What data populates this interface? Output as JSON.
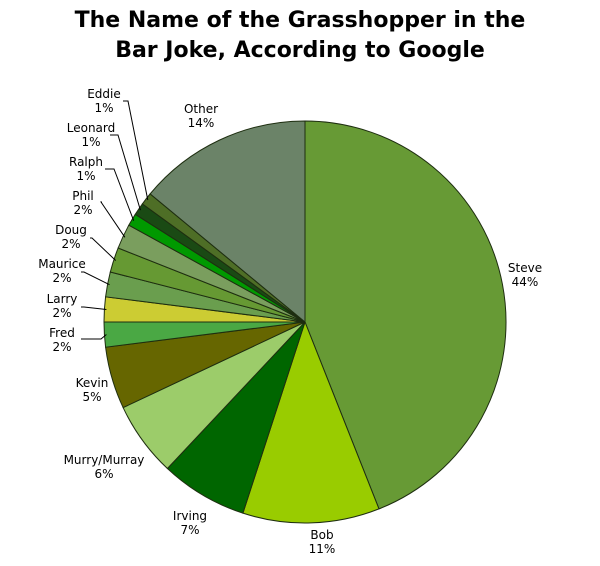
{
  "title_lines": [
    "The Name of the Grasshopper in the",
    "Bar Joke, According to Google"
  ],
  "chart_data": {
    "type": "pie",
    "title": "The Name of the Grasshopper in the Bar Joke, According to Google",
    "unit": "%",
    "direction": "clockwise from top",
    "slices": [
      {
        "label": "Steve",
        "value": 44,
        "display": "44%",
        "color": "#679a35"
      },
      {
        "label": "Bob",
        "value": 11,
        "display": "11%",
        "color": "#99cc00"
      },
      {
        "label": "Irving",
        "value": 7,
        "display": "7%",
        "color": "#006600"
      },
      {
        "label": "Murry/Murray",
        "value": 6,
        "display": "6%",
        "color": "#9ccc6a"
      },
      {
        "label": "Kevin",
        "value": 5,
        "display": "5%",
        "color": "#666600"
      },
      {
        "label": "Fred",
        "value": 2,
        "display": "2%",
        "color": "#4aa844"
      },
      {
        "label": "Larry",
        "value": 2,
        "display": "2%",
        "color": "#cccc33"
      },
      {
        "label": "Maurice",
        "value": 2,
        "display": "2%",
        "color": "#6a9e4e"
      },
      {
        "label": "Doug",
        "value": 2,
        "display": "2%",
        "color": "#669933"
      },
      {
        "label": "Phil",
        "value": 2,
        "display": "2%",
        "color": "#7a9e5e"
      },
      {
        "label": "Ralph",
        "value": 1,
        "display": "1%",
        "color": "#009900"
      },
      {
        "label": "Leonard",
        "value": 1,
        "display": "1%",
        "color": "#1a4a14"
      },
      {
        "label": "Eddie",
        "value": 1,
        "display": "1%",
        "color": "#4e6e26"
      },
      {
        "label": "Other",
        "value": 14,
        "display": "14%",
        "color": "#6b8368"
      }
    ]
  }
}
